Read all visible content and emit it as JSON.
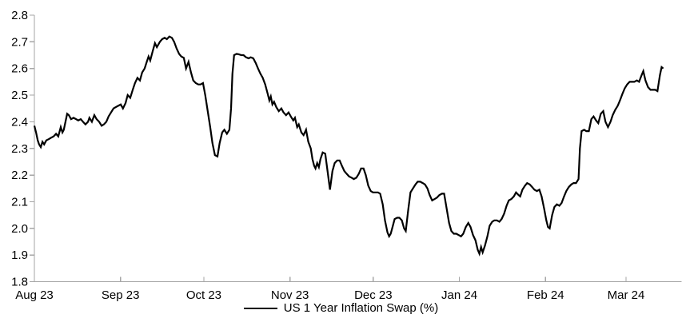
{
  "chart": {
    "legend_label": "US 1 Year Inflation Swap (%)",
    "colors": {
      "line": "#000000",
      "axis": "#a6a6a6",
      "text": "#000000",
      "background": "#ffffff"
    }
  },
  "chart_data": {
    "type": "line",
    "legend": [
      "US 1 Year Inflation Swap (%)"
    ],
    "legend_position": "bottom-center",
    "grid": false,
    "x_axis": {
      "unit": "days since Aug 1 2023",
      "domain": [
        0,
        233
      ],
      "ticks": [
        {
          "day": 0,
          "label": "Aug 23"
        },
        {
          "day": 31,
          "label": "Sep 23"
        },
        {
          "day": 61,
          "label": "Oct 23"
        },
        {
          "day": 92,
          "label": "Nov 23"
        },
        {
          "day": 122,
          "label": "Dec 23"
        },
        {
          "day": 153,
          "label": "Jan 24"
        },
        {
          "day": 184,
          "label": "Feb 24"
        },
        {
          "day": 213,
          "label": "Mar 24"
        }
      ]
    },
    "y_axis": {
      "min": 1.8,
      "max": 2.8,
      "step": 0.1,
      "tick_labels": [
        "2.8",
        "2.7",
        "2.6",
        "2.5",
        "2.4",
        "2.3",
        "2.2",
        "2.1",
        "2.0",
        "1.9",
        "1.8"
      ]
    },
    "series": [
      {
        "name": "US 1 Year Inflation Swap (%)",
        "points": [
          [
            0,
            2.385
          ],
          [
            0.6,
            2.36
          ],
          [
            1.2,
            2.33
          ],
          [
            1.7,
            2.315
          ],
          [
            2.3,
            2.305
          ],
          [
            2.9,
            2.325
          ],
          [
            3.5,
            2.315
          ],
          [
            4.3,
            2.33
          ],
          [
            5.2,
            2.335
          ],
          [
            6,
            2.34
          ],
          [
            6.9,
            2.345
          ],
          [
            7.8,
            2.355
          ],
          [
            8.6,
            2.345
          ],
          [
            9.5,
            2.38
          ],
          [
            10.1,
            2.36
          ],
          [
            10.6,
            2.37
          ],
          [
            11.2,
            2.4
          ],
          [
            11.8,
            2.43
          ],
          [
            12.4,
            2.425
          ],
          [
            13.2,
            2.41
          ],
          [
            14.1,
            2.415
          ],
          [
            15,
            2.41
          ],
          [
            15.8,
            2.405
          ],
          [
            16.7,
            2.41
          ],
          [
            17.5,
            2.4
          ],
          [
            18.4,
            2.39
          ],
          [
            19.3,
            2.4
          ],
          [
            19.8,
            2.415
          ],
          [
            20.7,
            2.4
          ],
          [
            21.6,
            2.425
          ],
          [
            22.4,
            2.41
          ],
          [
            23.3,
            2.4
          ],
          [
            24.2,
            2.385
          ],
          [
            25,
            2.39
          ],
          [
            25.9,
            2.4
          ],
          [
            26.7,
            2.42
          ],
          [
            27.6,
            2.435
          ],
          [
            28.5,
            2.45
          ],
          [
            29.3,
            2.455
          ],
          [
            30.2,
            2.46
          ],
          [
            31.1,
            2.465
          ],
          [
            31.9,
            2.45
          ],
          [
            32.8,
            2.47
          ],
          [
            33.6,
            2.5
          ],
          [
            34.5,
            2.49
          ],
          [
            35.4,
            2.52
          ],
          [
            36.2,
            2.545
          ],
          [
            37.1,
            2.565
          ],
          [
            38,
            2.555
          ],
          [
            38.8,
            2.585
          ],
          [
            39.7,
            2.6
          ],
          [
            40.6,
            2.63
          ],
          [
            41.1,
            2.645
          ],
          [
            41.7,
            2.63
          ],
          [
            42.6,
            2.665
          ],
          [
            43.4,
            2.695
          ],
          [
            44.1,
            2.68
          ],
          [
            45.2,
            2.7
          ],
          [
            46,
            2.71
          ],
          [
            46.9,
            2.715
          ],
          [
            47.7,
            2.71
          ],
          [
            48.6,
            2.72
          ],
          [
            49.5,
            2.715
          ],
          [
            50.3,
            2.7
          ],
          [
            51.2,
            2.675
          ],
          [
            52.1,
            2.655
          ],
          [
            52.9,
            2.645
          ],
          [
            53.8,
            2.64
          ],
          [
            54.6,
            2.6
          ],
          [
            55.5,
            2.625
          ],
          [
            56.4,
            2.585
          ],
          [
            57.2,
            2.555
          ],
          [
            58.1,
            2.545
          ],
          [
            59,
            2.54
          ],
          [
            59.8,
            2.54
          ],
          [
            60.7,
            2.545
          ],
          [
            61.5,
            2.5
          ],
          [
            62.4,
            2.44
          ],
          [
            63.3,
            2.38
          ],
          [
            64.1,
            2.32
          ],
          [
            65,
            2.275
          ],
          [
            65.9,
            2.27
          ],
          [
            66.7,
            2.32
          ],
          [
            67.6,
            2.36
          ],
          [
            68.4,
            2.37
          ],
          [
            69.3,
            2.355
          ],
          [
            70.2,
            2.37
          ],
          [
            70.8,
            2.45
          ],
          [
            71.3,
            2.58
          ],
          [
            71.9,
            2.65
          ],
          [
            72.8,
            2.655
          ],
          [
            73.6,
            2.653
          ],
          [
            74.5,
            2.65
          ],
          [
            75.3,
            2.65
          ],
          [
            76.2,
            2.642
          ],
          [
            77.1,
            2.638
          ],
          [
            77.9,
            2.642
          ],
          [
            78.8,
            2.638
          ],
          [
            79.7,
            2.62
          ],
          [
            80.5,
            2.6
          ],
          [
            81.4,
            2.58
          ],
          [
            82.2,
            2.565
          ],
          [
            83.1,
            2.54
          ],
          [
            84,
            2.505
          ],
          [
            84.6,
            2.48
          ],
          [
            85.1,
            2.495
          ],
          [
            85.7,
            2.465
          ],
          [
            86.3,
            2.475
          ],
          [
            87.1,
            2.455
          ],
          [
            88,
            2.44
          ],
          [
            88.9,
            2.45
          ],
          [
            89.7,
            2.435
          ],
          [
            90.6,
            2.425
          ],
          [
            91.5,
            2.435
          ],
          [
            92.3,
            2.42
          ],
          [
            93.2,
            2.405
          ],
          [
            93.8,
            2.415
          ],
          [
            94.6,
            2.38
          ],
          [
            95.2,
            2.39
          ],
          [
            96.1,
            2.36
          ],
          [
            96.9,
            2.35
          ],
          [
            97.8,
            2.37
          ],
          [
            98.6,
            2.325
          ],
          [
            99.5,
            2.3
          ],
          [
            100.1,
            2.26
          ],
          [
            100.7,
            2.235
          ],
          [
            101.2,
            2.225
          ],
          [
            101.8,
            2.245
          ],
          [
            102.4,
            2.23
          ],
          [
            103,
            2.26
          ],
          [
            103.8,
            2.285
          ],
          [
            104.7,
            2.28
          ],
          [
            105.6,
            2.21
          ],
          [
            106.4,
            2.145
          ],
          [
            107.3,
            2.215
          ],
          [
            108.1,
            2.245
          ],
          [
            109,
            2.255
          ],
          [
            109.9,
            2.255
          ],
          [
            110.7,
            2.235
          ],
          [
            111.6,
            2.215
          ],
          [
            112.4,
            2.205
          ],
          [
            113.3,
            2.195
          ],
          [
            114.2,
            2.19
          ],
          [
            115,
            2.185
          ],
          [
            115.9,
            2.19
          ],
          [
            116.8,
            2.205
          ],
          [
            117.6,
            2.225
          ],
          [
            118.5,
            2.225
          ],
          [
            119.3,
            2.2
          ],
          [
            120.2,
            2.16
          ],
          [
            121.1,
            2.14
          ],
          [
            121.9,
            2.135
          ],
          [
            122.8,
            2.135
          ],
          [
            123.7,
            2.135
          ],
          [
            124.5,
            2.13
          ],
          [
            125.4,
            2.09
          ],
          [
            126.2,
            2.03
          ],
          [
            127.1,
            1.985
          ],
          [
            127.7,
            1.97
          ],
          [
            128.3,
            1.98
          ],
          [
            128.8,
            2
          ],
          [
            129.7,
            2.035
          ],
          [
            130.6,
            2.04
          ],
          [
            131.4,
            2.04
          ],
          [
            132.3,
            2.03
          ],
          [
            133.1,
            2
          ],
          [
            133.7,
            1.99
          ],
          [
            134.6,
            2.07
          ],
          [
            135.4,
            2.135
          ],
          [
            136.3,
            2.15
          ],
          [
            137.2,
            2.165
          ],
          [
            138,
            2.175
          ],
          [
            138.9,
            2.175
          ],
          [
            139.8,
            2.17
          ],
          [
            140.6,
            2.165
          ],
          [
            141.5,
            2.15
          ],
          [
            142.3,
            2.125
          ],
          [
            143.2,
            2.105
          ],
          [
            144.1,
            2.11
          ],
          [
            144.9,
            2.115
          ],
          [
            145.8,
            2.125
          ],
          [
            146.7,
            2.13
          ],
          [
            147.5,
            2.13
          ],
          [
            148.4,
            2.075
          ],
          [
            149.3,
            2.02
          ],
          [
            150.1,
            1.99
          ],
          [
            151,
            1.98
          ],
          [
            151.9,
            1.98
          ],
          [
            152.7,
            1.975
          ],
          [
            153.6,
            1.97
          ],
          [
            154.4,
            1.98
          ],
          [
            155.3,
            2.005
          ],
          [
            156.2,
            2.02
          ],
          [
            157,
            2.005
          ],
          [
            157.9,
            1.975
          ],
          [
            158.8,
            1.955
          ],
          [
            159.6,
            1.92
          ],
          [
            160.2,
            1.905
          ],
          [
            160.8,
            1.93
          ],
          [
            161.4,
            1.91
          ],
          [
            162.2,
            1.935
          ],
          [
            163.1,
            1.97
          ],
          [
            163.9,
            2.01
          ],
          [
            164.8,
            2.025
          ],
          [
            165.6,
            2.03
          ],
          [
            166.5,
            2.03
          ],
          [
            167.4,
            2.025
          ],
          [
            168.2,
            2.035
          ],
          [
            169.1,
            2.055
          ],
          [
            170,
            2.085
          ],
          [
            170.8,
            2.105
          ],
          [
            171.7,
            2.11
          ],
          [
            172.6,
            2.12
          ],
          [
            173.4,
            2.135
          ],
          [
            174.3,
            2.125
          ],
          [
            174.9,
            2.12
          ],
          [
            175.7,
            2.145
          ],
          [
            176.6,
            2.16
          ],
          [
            177.4,
            2.17
          ],
          [
            178.3,
            2.165
          ],
          [
            179.2,
            2.155
          ],
          [
            180,
            2.145
          ],
          [
            180.9,
            2.14
          ],
          [
            181.8,
            2.145
          ],
          [
            182.6,
            2.12
          ],
          [
            183.5,
            2.075
          ],
          [
            184.3,
            2.03
          ],
          [
            184.9,
            2.005
          ],
          [
            185.5,
            2
          ],
          [
            186.4,
            2.05
          ],
          [
            187.2,
            2.08
          ],
          [
            188.1,
            2.09
          ],
          [
            189,
            2.085
          ],
          [
            189.8,
            2.095
          ],
          [
            190.7,
            2.12
          ],
          [
            191.5,
            2.14
          ],
          [
            192.4,
            2.155
          ],
          [
            193.3,
            2.165
          ],
          [
            194.1,
            2.17
          ],
          [
            195,
            2.17
          ],
          [
            195.9,
            2.185
          ],
          [
            196.4,
            2.3
          ],
          [
            197,
            2.365
          ],
          [
            197.9,
            2.37
          ],
          [
            198.7,
            2.365
          ],
          [
            199.6,
            2.365
          ],
          [
            200.5,
            2.41
          ],
          [
            201.3,
            2.42
          ],
          [
            202.2,
            2.405
          ],
          [
            203,
            2.395
          ],
          [
            203.9,
            2.43
          ],
          [
            204.8,
            2.44
          ],
          [
            205.6,
            2.4
          ],
          [
            206.5,
            2.38
          ],
          [
            207.4,
            2.4
          ],
          [
            208.2,
            2.425
          ],
          [
            209.1,
            2.445
          ],
          [
            210,
            2.46
          ],
          [
            210.8,
            2.48
          ],
          [
            211.7,
            2.505
          ],
          [
            212.5,
            2.525
          ],
          [
            213.4,
            2.54
          ],
          [
            214.3,
            2.55
          ],
          [
            215.1,
            2.55
          ],
          [
            216,
            2.55
          ],
          [
            216.9,
            2.555
          ],
          [
            217.7,
            2.55
          ],
          [
            218.6,
            2.575
          ],
          [
            219.2,
            2.59
          ],
          [
            220,
            2.555
          ],
          [
            220.9,
            2.53
          ],
          [
            221.8,
            2.52
          ],
          [
            222.6,
            2.52
          ],
          [
            223.5,
            2.52
          ],
          [
            224.3,
            2.515
          ],
          [
            225.2,
            2.575
          ],
          [
            225.8,
            2.605
          ],
          [
            226.4,
            2.6
          ]
        ]
      }
    ]
  }
}
